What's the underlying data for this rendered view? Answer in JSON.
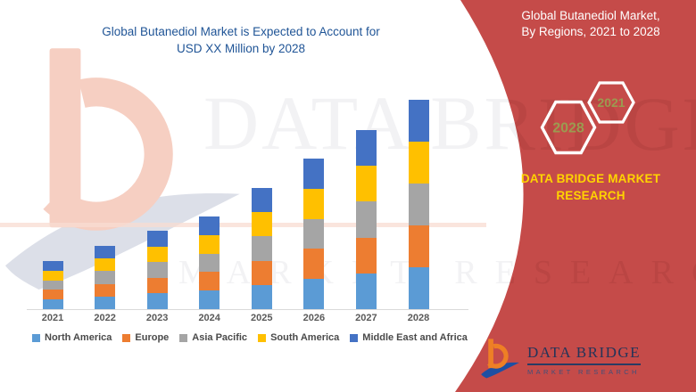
{
  "header": {
    "title_line1": "Global Butanediol Market is Expected to Account for",
    "title_line2": "USD XX Million by 2028"
  },
  "sidebar": {
    "title_line1": "Global Butanediol Market,",
    "title_line2": "By Regions, 2021 to 2028",
    "badges": [
      {
        "label": "2028"
      },
      {
        "label": "2021"
      }
    ],
    "brand_line1": "DATA BRIDGE MARKET",
    "brand_line2": "RESEARCH"
  },
  "footer_logo": {
    "name": "DATA BRIDGE",
    "subtitle": "MARKET RESEARCH"
  },
  "watermark": {
    "text_main": "DATA BRIDGE",
    "text_sub": "MARKET RESEARCH"
  },
  "colors": {
    "panel_red": "#C54B49",
    "title_blue": "#1F5496",
    "hex_number_olive": "#9B9B50",
    "brand_yellow": "#FFD400",
    "axis_label_gray": "#595959",
    "legend_text_gray": "#4a4a4a",
    "axis_line_gray": "#D9D9D9"
  },
  "chart_data": {
    "type": "bar",
    "stacked": true,
    "title": "Global Butanediol Market is Expected to Account for USD XX Million by 2028",
    "xlabel": "",
    "ylabel": "",
    "value_note": "No y-axis shown in source; values are approximate relative units estimated from bar heights (equal regional stacking).",
    "ylim": [
      0,
      250
    ],
    "grid": false,
    "legend_position": "bottom",
    "categories": [
      "2021",
      "2022",
      "2023",
      "2024",
      "2025",
      "2026",
      "2027",
      "2028"
    ],
    "totals": [
      54,
      71,
      88,
      104,
      136,
      169,
      201,
      235
    ],
    "series": [
      {
        "name": "North America",
        "color": "#5B9BD5",
        "values": [
          10.8,
          14.2,
          17.6,
          20.8,
          27.2,
          33.8,
          40.2,
          47.0
        ]
      },
      {
        "name": "Europe",
        "color": "#ED7D31",
        "values": [
          10.8,
          14.2,
          17.6,
          20.8,
          27.2,
          33.8,
          40.2,
          47.0
        ]
      },
      {
        "name": "Asia Pacific",
        "color": "#A5A5A5",
        "values": [
          10.8,
          14.2,
          17.6,
          20.8,
          27.2,
          33.8,
          40.2,
          47.0
        ]
      },
      {
        "name": "South America",
        "color": "#FFC000",
        "values": [
          10.8,
          14.2,
          17.6,
          20.8,
          27.2,
          33.8,
          40.2,
          47.0
        ]
      },
      {
        "name": "Middle East and Africa",
        "color": "#4472C4",
        "values": [
          10.8,
          14.2,
          17.6,
          20.8,
          27.2,
          33.8,
          40.2,
          47.0
        ]
      }
    ]
  }
}
